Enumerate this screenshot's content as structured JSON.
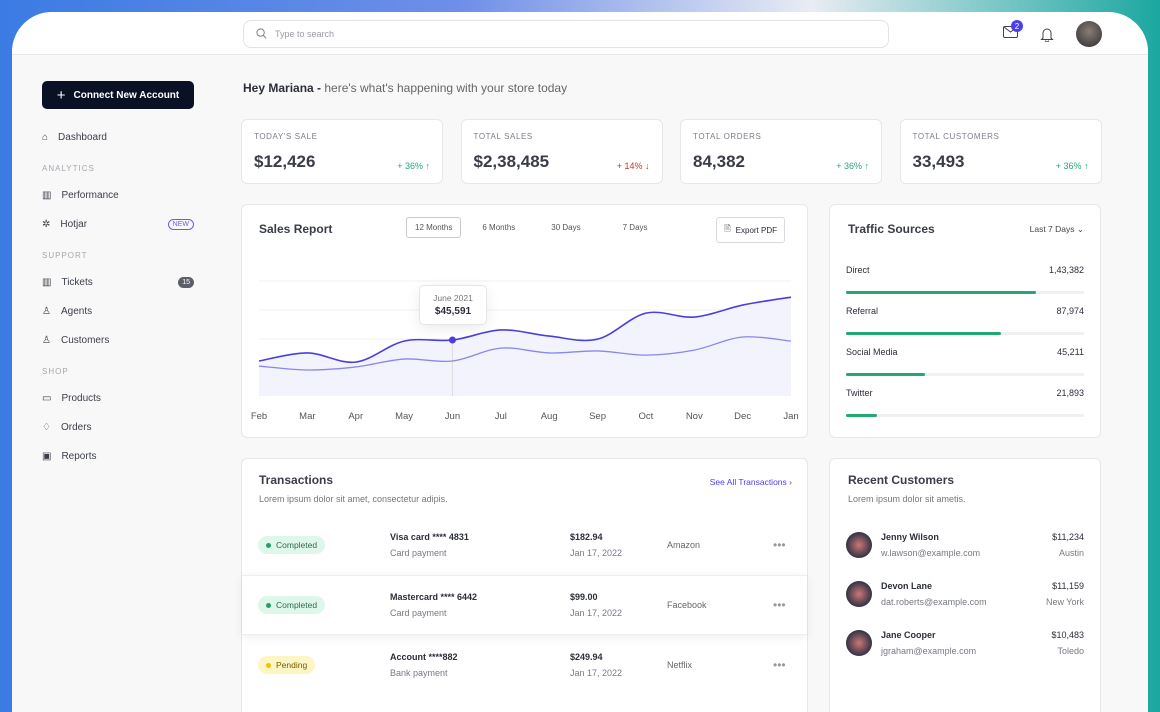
{
  "header": {
    "search_placeholder": "Type to search",
    "mail_badge": "2"
  },
  "sidebar": {
    "cta": "Connect New Account",
    "dashboard": "Dashboard",
    "sections": [
      {
        "title": "ANALYTICS",
        "items": [
          {
            "label": "Performance"
          },
          {
            "label": "Hotjar",
            "badge": "NEW"
          }
        ]
      },
      {
        "title": "SUPPORT",
        "items": [
          {
            "label": "Tickets",
            "count": "15"
          },
          {
            "label": "Agents"
          },
          {
            "label": "Customers"
          }
        ]
      },
      {
        "title": "SHOP",
        "items": [
          {
            "label": "Products"
          },
          {
            "label": "Orders"
          },
          {
            "label": "Reports"
          }
        ]
      }
    ]
  },
  "greeting": {
    "name": "Hey Mariana -",
    "text": "here's what's happening with your store today"
  },
  "stats": [
    {
      "label": "TODAY'S SALE",
      "value": "$12,426",
      "change": "+ 36% ↑",
      "up": true
    },
    {
      "label": "TOTAL SALES",
      "value": "$2,38,485",
      "change": "+ 14% ↓",
      "up": false
    },
    {
      "label": "TOTAL ORDERS",
      "value": "84,382",
      "change": "+ 36% ↑",
      "up": true
    },
    {
      "label": "TOTAL CUSTOMERS",
      "value": "33,493",
      "change": "+ 36% ↑",
      "up": true
    }
  ],
  "sales_report": {
    "title": "Sales Report",
    "tabs": [
      "12 Months",
      "6 Months",
      "30 Days",
      "7 Days"
    ],
    "active_tab": "12 Months",
    "export": "Export PDF",
    "tooltip": {
      "label": "June 2021",
      "value": "$45,591"
    }
  },
  "chart_data": {
    "type": "line",
    "title": "Sales Report",
    "categories": [
      "Feb",
      "Mar",
      "Apr",
      "May",
      "Jun",
      "Jul",
      "Aug",
      "Sep",
      "Oct",
      "Nov",
      "Dec",
      "Jan"
    ],
    "series": [
      {
        "name": "primary",
        "color": "#4b3fdc",
        "values": [
          36000,
          39700,
          35500,
          45100,
          45591,
          50200,
          47400,
          46000,
          57900,
          56100,
          61600,
          65200
        ]
      },
      {
        "name": "secondary",
        "color": "#8b86ec",
        "values": [
          33700,
          31900,
          33300,
          36900,
          36000,
          41900,
          39700,
          40600,
          38700,
          41000,
          47000,
          45100
        ]
      }
    ],
    "ylim": [
      20000,
      72600
    ],
    "grid": true,
    "highlight_index": 4
  },
  "traffic": {
    "title": "Traffic Sources",
    "range": "Last 7 Days",
    "items": [
      {
        "label": "Direct",
        "value": "1,43,382",
        "pct": 80
      },
      {
        "label": "Referral",
        "value": "87,974",
        "pct": 65
      },
      {
        "label": "Social Media",
        "value": "45,211",
        "pct": 33
      },
      {
        "label": "Twitter",
        "value": "21,893",
        "pct": 13
      }
    ]
  },
  "transactions": {
    "title": "Transactions",
    "subtitle": "Lorem ipsum dolor sit amet, consectetur adipis.",
    "see_all": "See All Transactions",
    "rows": [
      {
        "status": "Completed",
        "method": "Visa card **** 4831",
        "type": "Card payment",
        "amount": "$182.94",
        "date": "Jan 17, 2022",
        "merchant": "Amazon"
      },
      {
        "status": "Completed",
        "method": "Mastercard **** 6442",
        "type": "Card payment",
        "amount": "$99.00",
        "date": "Jan 17, 2022",
        "merchant": "Facebook"
      },
      {
        "status": "Pending",
        "method": "Account ****882",
        "type": "Bank payment",
        "amount": "$249.94",
        "date": "Jan 17, 2022",
        "merchant": "Netflix"
      }
    ]
  },
  "customers": {
    "title": "Recent Customers",
    "subtitle": "Lorem ipsum dolor sit ametis.",
    "rows": [
      {
        "name": "Jenny Wilson",
        "email": "w.lawson@example.com",
        "amount": "$11,234",
        "city": "Austin"
      },
      {
        "name": "Devon Lane",
        "email": "dat.roberts@example.com",
        "amount": "$11,159",
        "city": "New York"
      },
      {
        "name": "Jane Cooper",
        "email": "jgraham@example.com",
        "amount": "$10,483",
        "city": "Toledo"
      }
    ]
  }
}
